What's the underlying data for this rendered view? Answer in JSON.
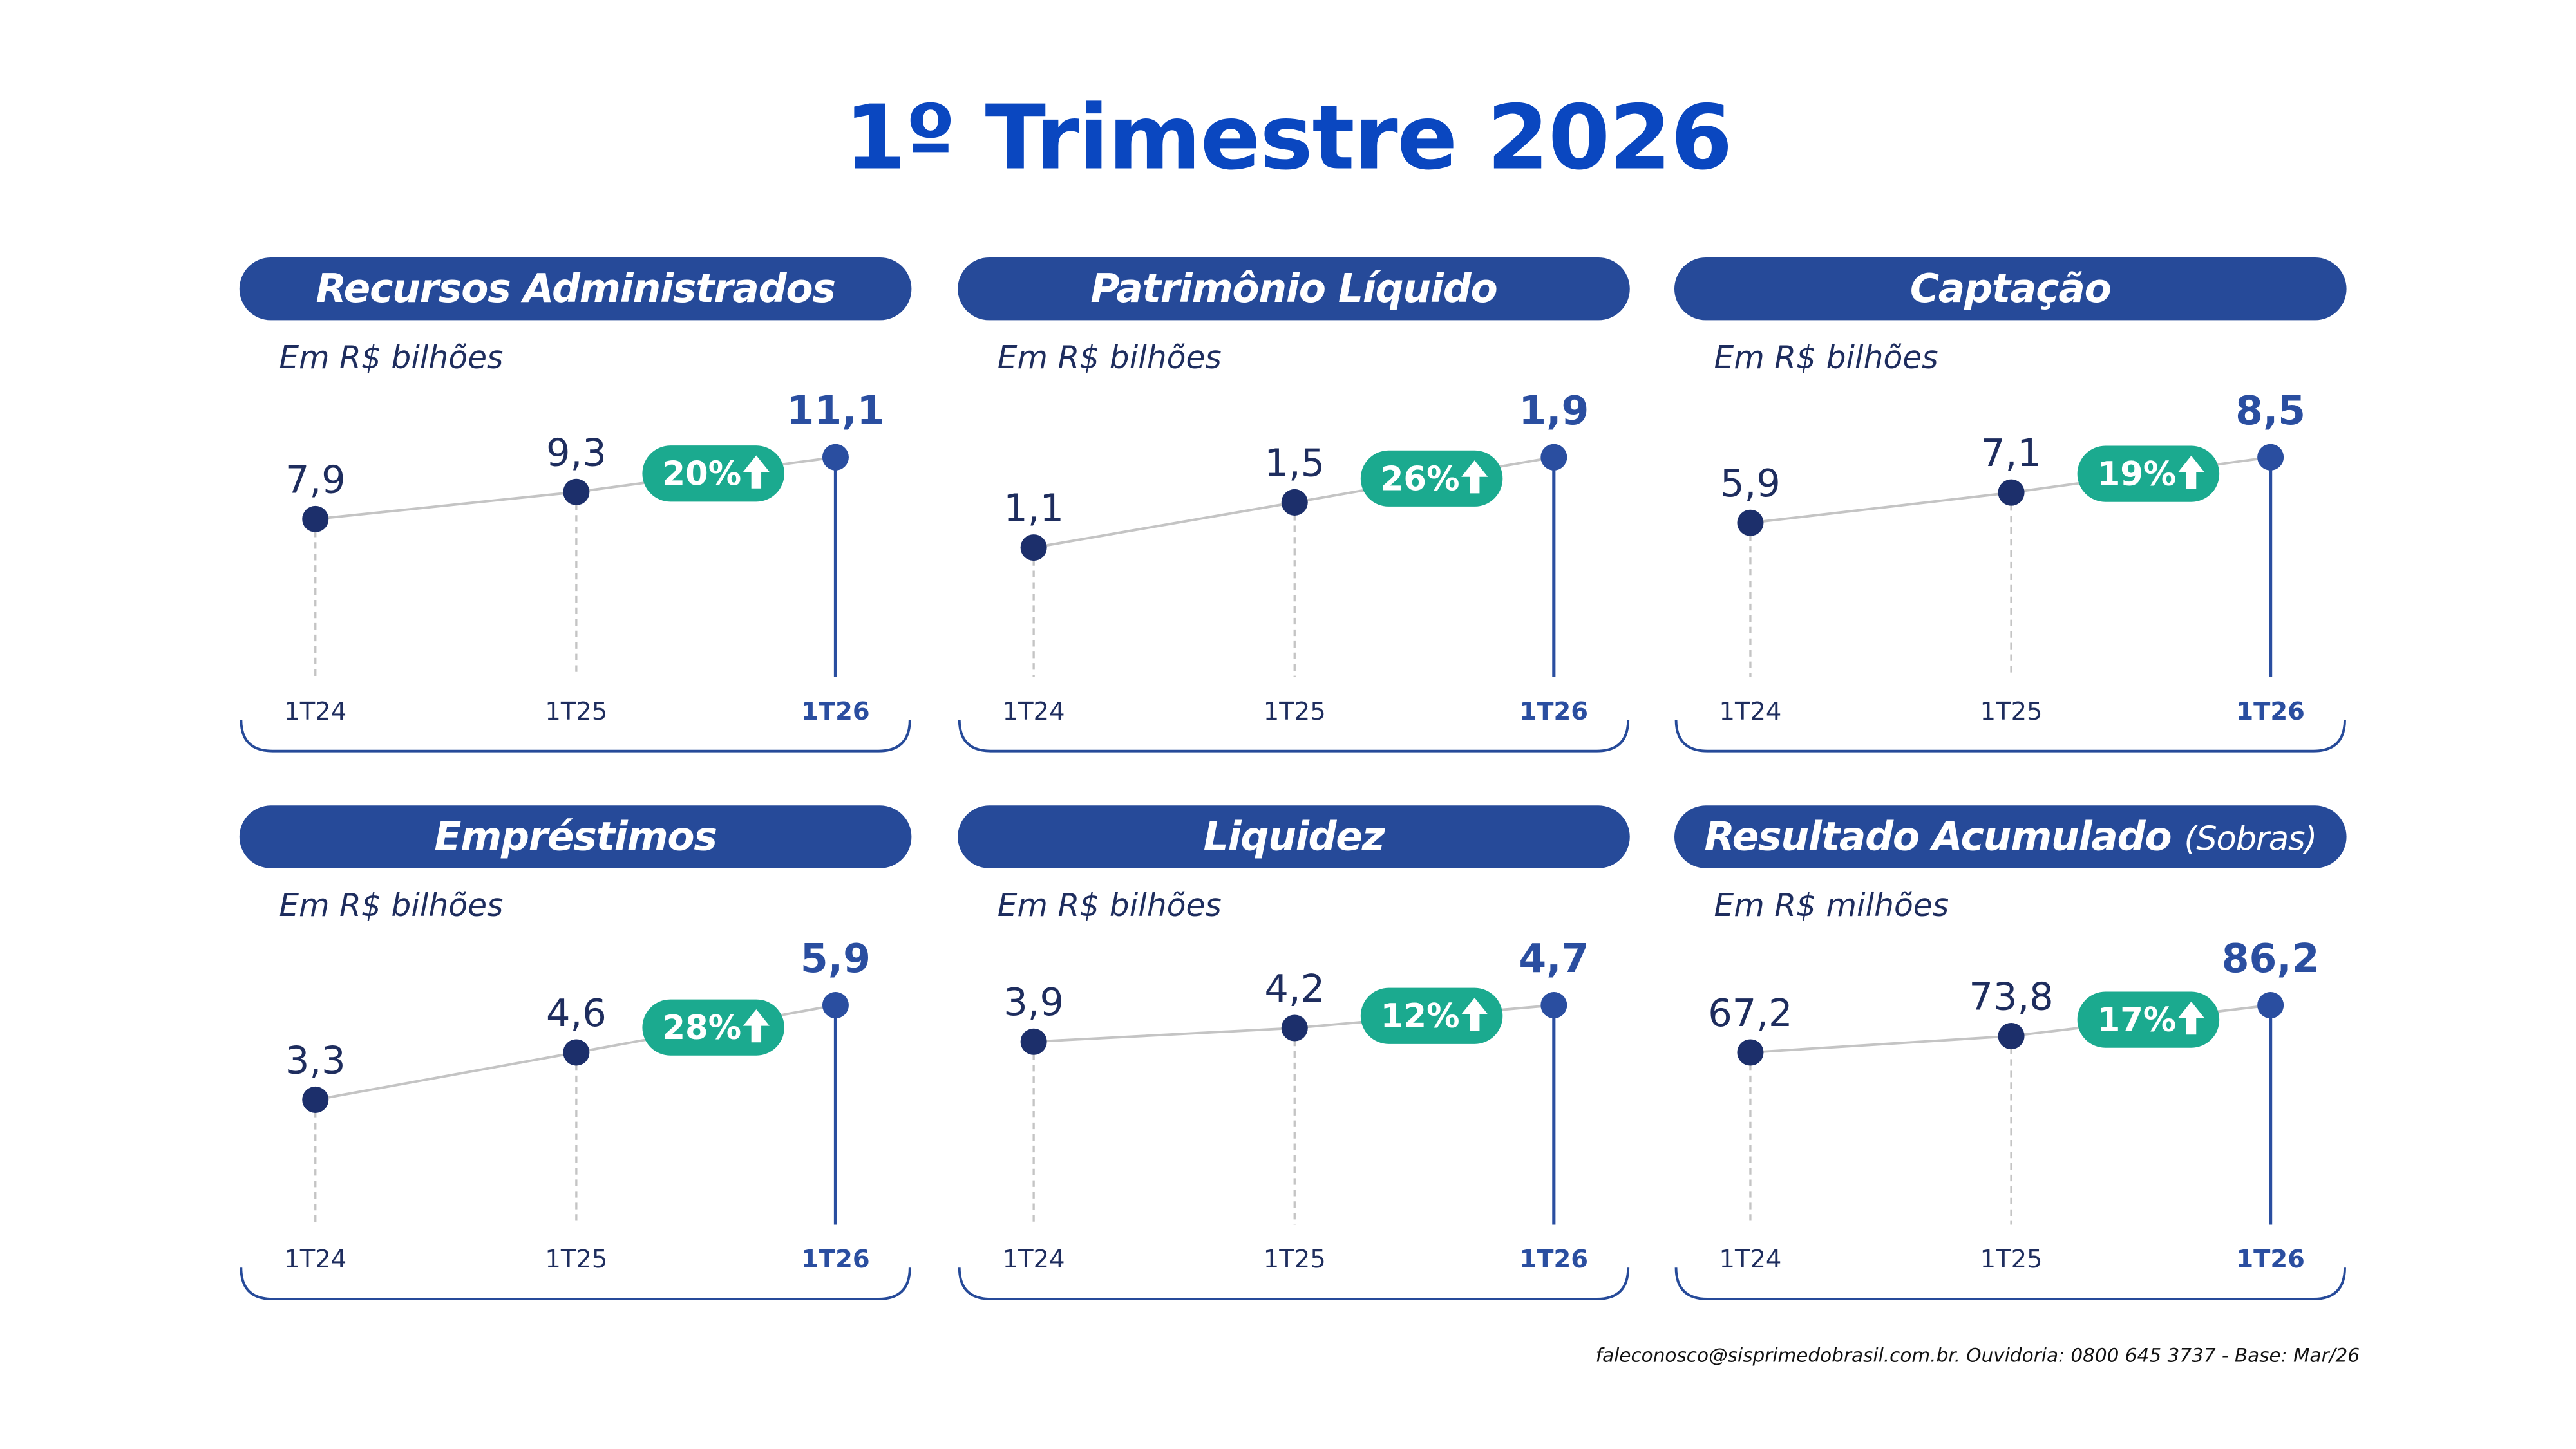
{
  "title": "1º Trimestre 2026",
  "footer": "faleconosco@sisprimedobrasil.com.br. Ouvidoria: 0800 645 3737 - Base: Mar/26",
  "colors": {
    "title": "#0A47C0",
    "header": "#264A99",
    "dot": "#1C2F6B",
    "highlight": "#2A4EA0",
    "badge": "#1BAA8F",
    "text": "#1E2D5E",
    "line": "#C4C4C4"
  },
  "chart_data": [
    {
      "type": "line",
      "title": "Recursos Administrados",
      "title_suffix": "",
      "unit": "Em R$ bilhões",
      "categories": [
        "1T24",
        "1T25",
        "1T26"
      ],
      "values": [
        7.9,
        9.3,
        11.1
      ],
      "labels": [
        "7,9",
        "9,3",
        "11,1"
      ],
      "growth": "20%",
      "growth_icon": "arrow-up-icon"
    },
    {
      "type": "line",
      "title": "Patrimônio Líquido",
      "title_suffix": "",
      "unit": "Em R$ bilhões",
      "categories": [
        "1T24",
        "1T25",
        "1T26"
      ],
      "values": [
        1.1,
        1.5,
        1.9
      ],
      "labels": [
        "1,1",
        "1,5",
        "1,9"
      ],
      "growth": "26%",
      "growth_icon": "arrow-up-icon"
    },
    {
      "type": "line",
      "title": "Captação",
      "title_suffix": "",
      "unit": "Em R$ bilhões",
      "categories": [
        "1T24",
        "1T25",
        "1T26"
      ],
      "values": [
        5.9,
        7.1,
        8.5
      ],
      "labels": [
        "5,9",
        "7,1",
        "8,5"
      ],
      "growth": "19%",
      "growth_icon": "arrow-up-icon"
    },
    {
      "type": "line",
      "title": "Empréstimos",
      "title_suffix": "",
      "unit": "Em R$ bilhões",
      "categories": [
        "1T24",
        "1T25",
        "1T26"
      ],
      "values": [
        3.3,
        4.6,
        5.9
      ],
      "labels": [
        "3,3",
        "4,6",
        "5,9"
      ],
      "growth": "28%",
      "growth_icon": "arrow-up-icon"
    },
    {
      "type": "line",
      "title": "Liquidez",
      "title_suffix": "",
      "unit": "Em R$ bilhões",
      "categories": [
        "1T24",
        "1T25",
        "1T26"
      ],
      "values": [
        3.9,
        4.2,
        4.7
      ],
      "labels": [
        "3,9",
        "4,2",
        "4,7"
      ],
      "growth": "12%",
      "growth_icon": "arrow-up-icon"
    },
    {
      "type": "line",
      "title": "Resultado Acumulado",
      "title_suffix": "(Sobras)",
      "unit": "Em R$ milhões",
      "categories": [
        "1T24",
        "1T25",
        "1T26"
      ],
      "values": [
        67.2,
        73.8,
        86.2
      ],
      "labels": [
        "67,2",
        "73,8",
        "86,2"
      ],
      "growth": "17%",
      "growth_icon": "arrow-up-icon"
    }
  ]
}
